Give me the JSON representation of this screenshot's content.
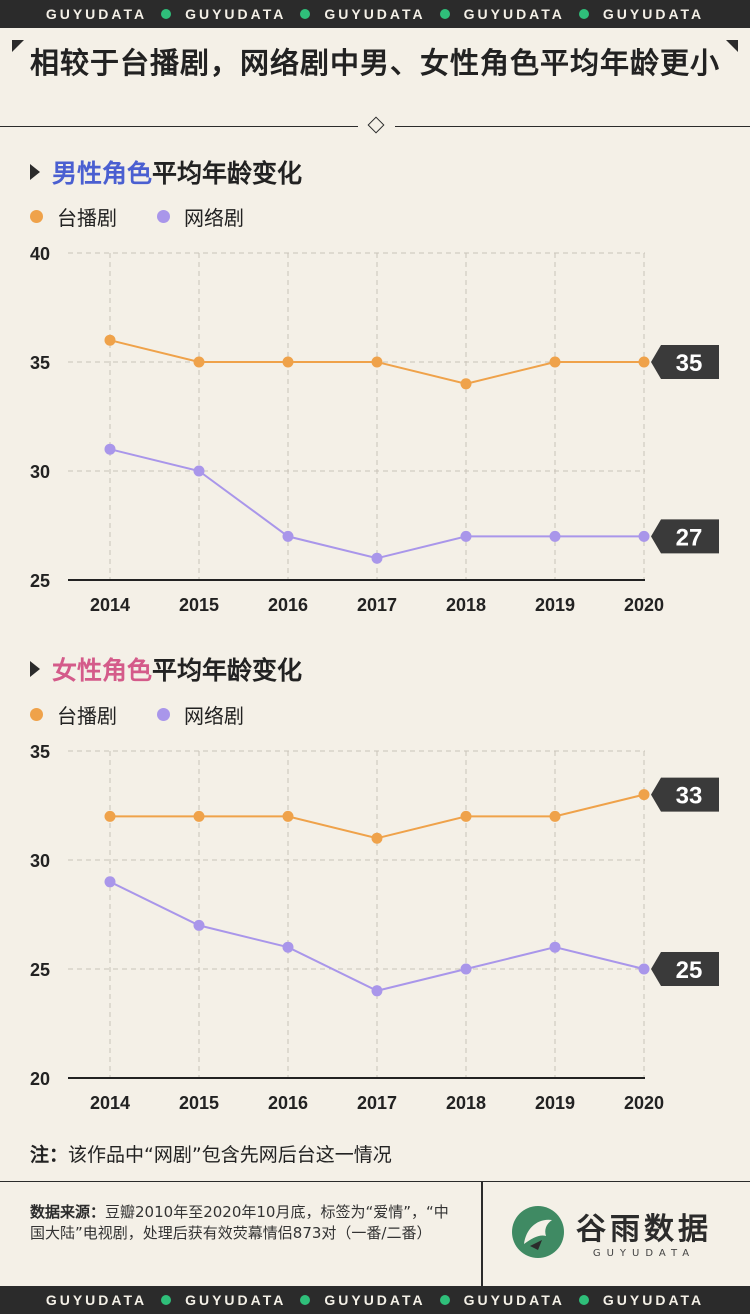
{
  "brand_strip": [
    "GUYUDATA",
    "GUYUDATA",
    "GUYUDATA",
    "GUYUDATA",
    "GUYUDATA"
  ],
  "headline": "相较于台播剧，网络剧中男、女性角色平均年龄更小",
  "sections": [
    {
      "title_highlight": "男性角色",
      "title_rest": "平均年龄变化"
    },
    {
      "title_highlight": "女性角色",
      "title_rest": "平均年龄变化"
    }
  ],
  "legend": [
    "台播剧",
    "网络剧"
  ],
  "colors": {
    "tv": "#efa24a",
    "web": "#a996ea",
    "grid": "#c9c3b8",
    "axis": "#222222",
    "male": "#4a5fd1",
    "female": "#d45b8a",
    "badge": "#3a3a3a"
  },
  "chart_data": [
    {
      "type": "line",
      "categories": [
        "2014",
        "2015",
        "2016",
        "2017",
        "2018",
        "2019",
        "2020"
      ],
      "ylim": [
        25,
        40
      ],
      "yticks": [
        25,
        30,
        35,
        40
      ],
      "series": [
        {
          "name": "台播剧",
          "values": [
            36,
            35,
            35,
            35,
            34,
            35,
            35
          ]
        },
        {
          "name": "网络剧",
          "values": [
            31,
            30,
            27,
            26,
            27,
            27,
            27
          ]
        }
      ],
      "end_labels": [
        "35",
        "27"
      ]
    },
    {
      "type": "line",
      "categories": [
        "2014",
        "2015",
        "2016",
        "2017",
        "2018",
        "2019",
        "2020"
      ],
      "ylim": [
        20,
        35
      ],
      "yticks": [
        20,
        25,
        30,
        35
      ],
      "series": [
        {
          "name": "台播剧",
          "values": [
            32,
            32,
            32,
            31,
            32,
            32,
            33
          ]
        },
        {
          "name": "网络剧",
          "values": [
            29,
            27,
            26,
            24,
            25,
            26,
            25
          ]
        }
      ],
      "end_labels": [
        "33",
        "25"
      ]
    }
  ],
  "note_label": "注：",
  "note_text": "该作品中“网剧”包含先网后台这一情况",
  "source_label": "数据来源：",
  "source_text": "豆瓣2010年至2020年10月底，标签为“爱情”，“中国大陆”电视剧，处理后获有效荧幕情侣873对（一番/二番）",
  "logo_cn": "谷雨数据",
  "logo_en": "GUYUDATA"
}
